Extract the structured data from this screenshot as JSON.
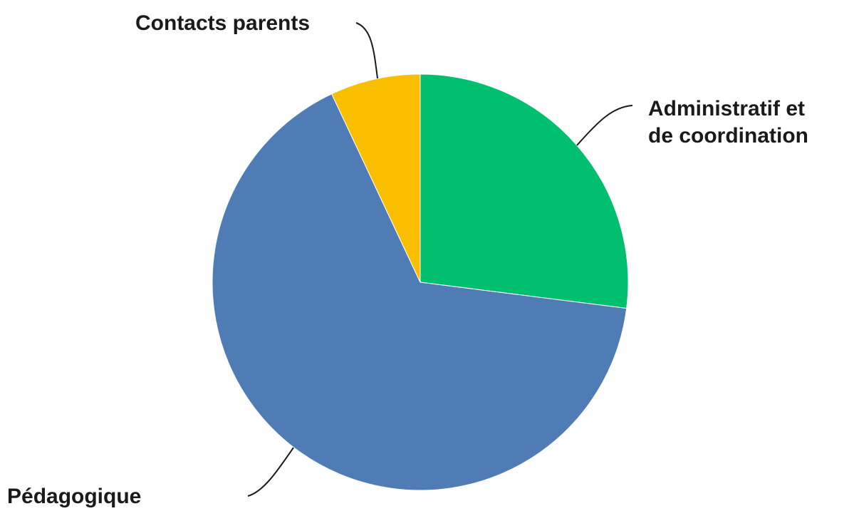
{
  "chart_data": {
    "type": "pie",
    "title": "",
    "start_angle_deg": 0,
    "direction": "clockwise",
    "slices": [
      {
        "label": "Administratif et de coordination",
        "label_lines": [
          "Administratif et",
          "de coordination"
        ],
        "value": 27,
        "color": "#00bf6f"
      },
      {
        "label": "Pédagogique",
        "label_lines": [
          "Pédagogique"
        ],
        "value": 66,
        "color": "#507cb6"
      },
      {
        "label": "Contacts parents",
        "label_lines": [
          "Contacts parents"
        ],
        "value": 7,
        "color": "#f9be00"
      }
    ],
    "legend": "none",
    "data_labels": "category names outside with leader lines"
  }
}
